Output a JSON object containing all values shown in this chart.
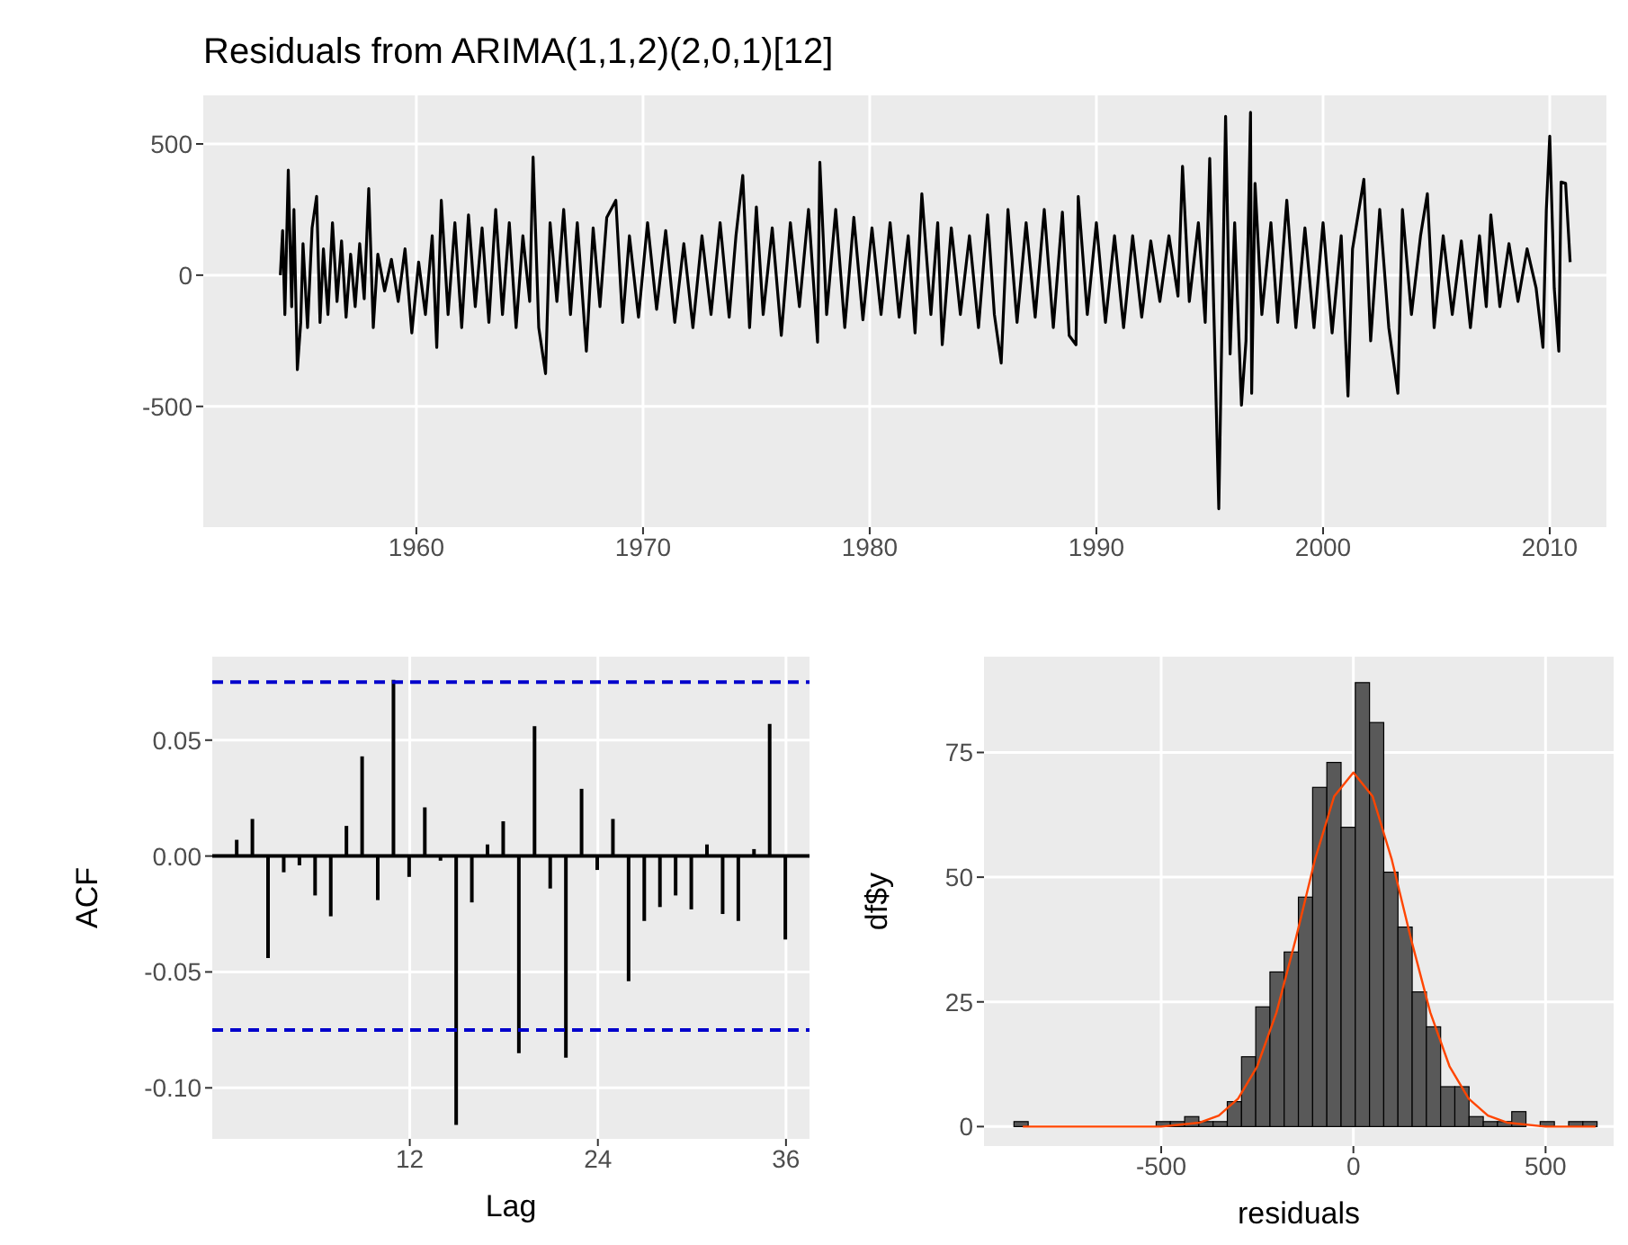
{
  "chart_data": [
    {
      "type": "line",
      "title": "Residuals from ARIMA(1,1,2)(2,0,1)[12]",
      "color": "#000000",
      "grid": true,
      "x": [
        1954.0,
        1954.1,
        1954.2,
        1954.35,
        1954.5,
        1954.6,
        1954.75,
        1954.9,
        1955.0,
        1955.2,
        1955.4,
        1955.6,
        1955.75,
        1955.9,
        1956.1,
        1956.3,
        1956.5,
        1956.7,
        1956.9,
        1957.1,
        1957.3,
        1957.5,
        1957.7,
        1957.9,
        1958.1,
        1958.3,
        1958.6,
        1958.9,
        1959.2,
        1959.5,
        1959.8,
        1960.1,
        1960.4,
        1960.7,
        1960.9,
        1961.1,
        1961.4,
        1961.7,
        1962.0,
        1962.3,
        1962.6,
        1962.9,
        1963.2,
        1963.5,
        1963.8,
        1964.1,
        1964.4,
        1964.7,
        1965.0,
        1965.15,
        1965.4,
        1965.7,
        1965.9,
        1966.2,
        1966.5,
        1966.8,
        1967.1,
        1967.5,
        1967.8,
        1968.1,
        1968.4,
        1968.8,
        1969.1,
        1969.4,
        1969.8,
        1970.2,
        1970.6,
        1971.0,
        1971.4,
        1971.8,
        1972.2,
        1972.6,
        1973.0,
        1973.4,
        1973.8,
        1974.1,
        1974.4,
        1974.7,
        1975.0,
        1975.3,
        1975.7,
        1976.1,
        1976.5,
        1976.9,
        1977.3,
        1977.7,
        1977.8,
        1978.1,
        1978.5,
        1978.9,
        1979.3,
        1979.7,
        1980.1,
        1980.5,
        1980.9,
        1981.3,
        1981.7,
        1982.0,
        1982.3,
        1982.7,
        1983.0,
        1983.2,
        1983.6,
        1984.0,
        1984.4,
        1984.8,
        1985.2,
        1985.5,
        1985.8,
        1986.1,
        1986.5,
        1986.9,
        1987.3,
        1987.7,
        1988.1,
        1988.5,
        1988.8,
        1989.1,
        1989.2,
        1989.6,
        1990.0,
        1990.4,
        1990.8,
        1991.2,
        1991.6,
        1992.0,
        1992.4,
        1992.8,
        1993.2,
        1993.6,
        1993.8,
        1994.1,
        1994.5,
        1994.8,
        1995.0,
        1995.2,
        1995.4,
        1995.7,
        1995.9,
        1996.1,
        1996.4,
        1996.6,
        1996.8,
        1996.85,
        1997.0,
        1997.3,
        1997.7,
        1998.0,
        1998.4,
        1998.8,
        1999.2,
        1999.6,
        2000.0,
        2000.4,
        2000.8,
        2001.1,
        2001.3,
        2001.8,
        2002.1,
        2002.5,
        2002.9,
        2003.3,
        2003.5,
        2003.9,
        2004.3,
        2004.6,
        2004.9,
        2005.3,
        2005.7,
        2006.1,
        2006.5,
        2006.9,
        2007.2,
        2007.4,
        2007.8,
        2008.2,
        2008.6,
        2009.0,
        2009.4,
        2009.7,
        2009.85,
        2010.0,
        2010.2,
        2010.4,
        2010.5,
        2010.7,
        2010.9
      ],
      "values": [
        0,
        170,
        -150,
        400,
        -120,
        250,
        -360,
        -180,
        120,
        -200,
        180,
        300,
        -180,
        100,
        -150,
        200,
        -100,
        130,
        -160,
        80,
        -120,
        120,
        -90,
        330,
        -200,
        80,
        -60,
        60,
        -100,
        100,
        -220,
        50,
        -150,
        150,
        -275,
        285,
        -150,
        200,
        -200,
        230,
        -120,
        180,
        -180,
        250,
        -150,
        200,
        -200,
        150,
        -100,
        450,
        -200,
        -375,
        200,
        -100,
        250,
        -150,
        200,
        -290,
        180,
        -120,
        220,
        285,
        -180,
        150,
        -160,
        200,
        -130,
        170,
        -180,
        120,
        -200,
        150,
        -150,
        200,
        -160,
        150,
        380,
        -200,
        260,
        -150,
        180,
        -230,
        200,
        -120,
        250,
        -255,
        430,
        -150,
        250,
        -200,
        220,
        -170,
        180,
        -150,
        200,
        -160,
        150,
        -220,
        310,
        -150,
        200,
        -265,
        180,
        -150,
        150,
        -200,
        230,
        -150,
        -335,
        250,
        -180,
        200,
        -160,
        250,
        -200,
        240,
        -230,
        -265,
        300,
        -150,
        200,
        -180,
        150,
        -200,
        150,
        -160,
        130,
        -100,
        150,
        -80,
        415,
        -100,
        200,
        -180,
        445,
        -200,
        -890,
        605,
        -300,
        200,
        -495,
        -250,
        620,
        -450,
        350,
        -150,
        200,
        -180,
        285,
        -200,
        180,
        -200,
        200,
        -220,
        150,
        -460,
        100,
        365,
        -250,
        250,
        -200,
        -450,
        250,
        -150,
        150,
        310,
        -200,
        150,
        -150,
        130,
        -200,
        150,
        -120,
        230,
        -120,
        120,
        -100,
        100,
        -50,
        -275,
        250,
        530,
        -50,
        -290,
        355,
        350,
        50
      ],
      "xlim": [
        1950.6,
        2012.5
      ],
      "ylim": [
        -960,
        685
      ],
      "xticks": [
        1960,
        1970,
        1980,
        1990,
        2000,
        2010
      ],
      "yticks": [
        -500,
        0,
        500
      ]
    },
    {
      "type": "bar",
      "xlabel": "Lag",
      "ylabel": "ACF",
      "color": "#000000",
      "grid": true,
      "x": [
        1,
        2,
        3,
        4,
        5,
        6,
        7,
        8,
        9,
        10,
        11,
        12,
        13,
        14,
        15,
        16,
        17,
        18,
        19,
        20,
        21,
        22,
        23,
        24,
        25,
        26,
        27,
        28,
        29,
        30,
        31,
        32,
        33,
        34,
        35,
        36
      ],
      "values": [
        0.007,
        0.016,
        -0.044,
        -0.007,
        -0.004,
        -0.017,
        -0.026,
        0.013,
        0.043,
        -0.019,
        0.076,
        -0.009,
        0.021,
        -0.002,
        -0.116,
        -0.02,
        0.005,
        0.015,
        -0.085,
        0.056,
        -0.014,
        -0.087,
        0.029,
        -0.006,
        0.016,
        -0.054,
        -0.028,
        -0.022,
        -0.017,
        -0.023,
        0.005,
        -0.025,
        -0.028,
        0.003,
        0.057,
        -0.036
      ],
      "ref_lines": [
        {
          "axis": "y",
          "value": 0.075,
          "color": "#0000cc",
          "line_style": "dashed"
        },
        {
          "axis": "y",
          "value": -0.075,
          "color": "#0000cc",
          "line_style": "dashed"
        },
        {
          "axis": "y",
          "value": 0,
          "color": "#000000",
          "line_style": "solid"
        }
      ],
      "xlim": [
        -0.6,
        37.5
      ],
      "ylim": [
        -0.122,
        0.086
      ],
      "xticks": [
        12,
        24,
        36
      ],
      "yticks": [
        {
          "value": -0.1,
          "label": "-0.10"
        },
        {
          "value": -0.05,
          "label": "-0.05"
        },
        {
          "value": 0,
          "label": "0.00"
        },
        {
          "value": 0.05,
          "label": "0.05"
        }
      ]
    },
    {
      "type": "histogram",
      "xlabel": "residuals",
      "ylabel": "df$y",
      "color": "#595959",
      "grid": true,
      "bins": [
        -883,
        -846,
        -809,
        -772,
        -735,
        -698,
        -661,
        -624,
        -587,
        -550,
        -513,
        -476,
        -439,
        -402,
        -365,
        -328,
        -291,
        -254,
        -217,
        -180,
        -143,
        -106,
        -69,
        -32,
        5,
        42,
        79,
        116,
        153,
        190,
        227,
        264,
        301,
        338,
        375,
        412,
        449,
        486,
        523,
        560,
        597,
        634
      ],
      "values": [
        1,
        0,
        0,
        0,
        0,
        0,
        0,
        0,
        0,
        0,
        1,
        1,
        2,
        1,
        1,
        5,
        14,
        24,
        31,
        35,
        46,
        68,
        73,
        60,
        89,
        81,
        51,
        40,
        27,
        20,
        8,
        8,
        2,
        1,
        1,
        3,
        0,
        1,
        0,
        1,
        1
      ],
      "series": [
        {
          "type": "line",
          "color": "#ff4500",
          "x": [
            -860,
            -600,
            -500,
            -400,
            -350,
            -300,
            -250,
            -200,
            -150,
            -100,
            -50,
            0,
            50,
            100,
            150,
            200,
            250,
            300,
            350,
            400,
            500,
            630
          ],
          "values": [
            0,
            0,
            0,
            0.8,
            2.2,
            5.6,
            12.1,
            22.9,
            37.6,
            53.5,
            66.2,
            71,
            66.2,
            53.5,
            37.6,
            22.9,
            12.1,
            5.6,
            2.2,
            0.8,
            0,
            0
          ]
        }
      ],
      "xlim": [
        -961,
        677
      ],
      "ylim": [
        -3.9,
        94.2
      ],
      "xticks": [
        -500,
        0,
        500
      ],
      "yticks": [
        0,
        25,
        50,
        75
      ]
    }
  ]
}
